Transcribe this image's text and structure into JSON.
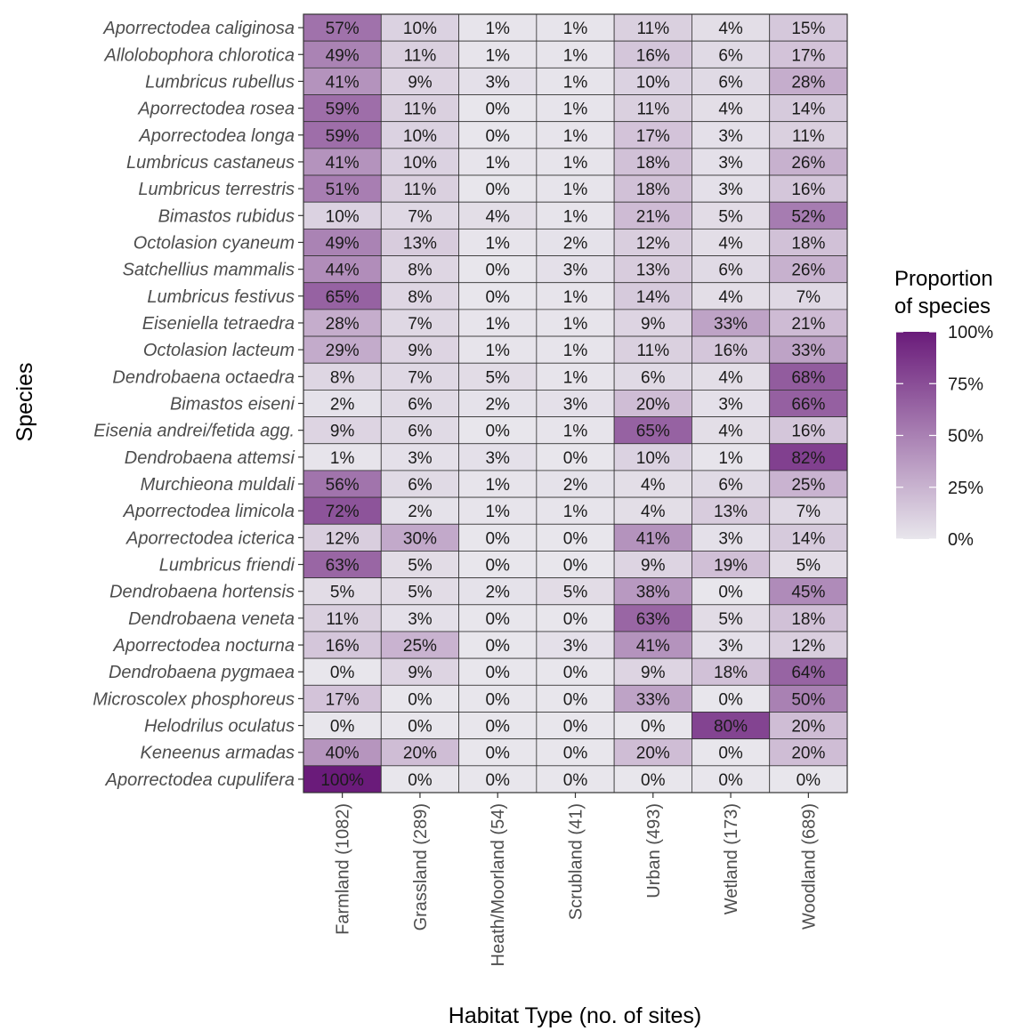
{
  "chart_data": {
    "type": "heatmap",
    "xlabel": "Habitat Type (no. of sites)",
    "ylabel": "Species",
    "columns": [
      "Farmland (1082)",
      "Grassland (289)",
      "Heath/Moorland (54)",
      "Scrubland (41)",
      "Urban (493)",
      "Wetland (173)",
      "Woodland (689)"
    ],
    "rows": [
      "Aporrectodea caliginosa",
      "Allolobophora chlorotica",
      "Lumbricus rubellus",
      "Aporrectodea rosea",
      "Aporrectodea longa",
      "Lumbricus castaneus",
      "Lumbricus terrestris",
      "Bimastos rubidus",
      "Octolasion cyaneum",
      "Satchellius mammalis",
      "Lumbricus festivus",
      "Eiseniella tetraedra",
      "Octolasion lacteum",
      "Dendrobaena octaedra",
      "Bimastos eiseni",
      "Eisenia andrei/fetida agg.",
      "Dendrobaena attemsi",
      "Murchieona muldali",
      "Aporrectodea limicola",
      "Aporrectodea icterica",
      "Lumbricus friendi",
      "Dendrobaena hortensis",
      "Dendrobaena veneta",
      "Aporrectodea nocturna",
      "Dendrobaena pygmaea",
      "Microscolex phosphoreus",
      "Helodrilus oculatus",
      "Keneenus armadas",
      "Aporrectodea cupulifera"
    ],
    "values": [
      [
        57,
        10,
        1,
        1,
        11,
        4,
        15
      ],
      [
        49,
        11,
        1,
        1,
        16,
        6,
        17
      ],
      [
        41,
        9,
        3,
        1,
        10,
        6,
        28
      ],
      [
        59,
        11,
        0,
        1,
        11,
        4,
        14
      ],
      [
        59,
        10,
        0,
        1,
        17,
        3,
        11
      ],
      [
        41,
        10,
        1,
        1,
        18,
        3,
        26
      ],
      [
        51,
        11,
        0,
        1,
        18,
        3,
        16
      ],
      [
        10,
        7,
        4,
        1,
        21,
        5,
        52
      ],
      [
        49,
        13,
        1,
        2,
        12,
        4,
        18
      ],
      [
        44,
        8,
        0,
        3,
        13,
        6,
        26
      ],
      [
        65,
        8,
        0,
        1,
        14,
        4,
        7
      ],
      [
        28,
        7,
        1,
        1,
        9,
        33,
        21
      ],
      [
        29,
        9,
        1,
        1,
        11,
        16,
        33
      ],
      [
        8,
        7,
        5,
        1,
        6,
        4,
        68
      ],
      [
        2,
        6,
        2,
        3,
        20,
        3,
        66
      ],
      [
        9,
        6,
        0,
        1,
        65,
        4,
        16
      ],
      [
        1,
        3,
        3,
        0,
        10,
        1,
        82
      ],
      [
        56,
        6,
        1,
        2,
        4,
        6,
        25
      ],
      [
        72,
        2,
        1,
        1,
        4,
        13,
        7
      ],
      [
        12,
        30,
        0,
        0,
        41,
        3,
        14
      ],
      [
        63,
        5,
        0,
        0,
        9,
        19,
        5
      ],
      [
        5,
        5,
        2,
        5,
        38,
        0,
        45
      ],
      [
        11,
        3,
        0,
        0,
        63,
        5,
        18
      ],
      [
        16,
        25,
        0,
        3,
        41,
        3,
        12
      ],
      [
        0,
        9,
        0,
        0,
        9,
        18,
        64
      ],
      [
        17,
        0,
        0,
        0,
        33,
        0,
        50
      ],
      [
        0,
        0,
        0,
        0,
        0,
        80,
        20
      ],
      [
        40,
        20,
        0,
        0,
        20,
        0,
        20
      ],
      [
        100,
        0,
        0,
        0,
        0,
        0,
        0
      ]
    ],
    "value_suffix": "%",
    "color_scale": {
      "low": "#e8e6ec",
      "high": "#6a1b7a",
      "domain": [
        0,
        100
      ]
    },
    "legend": {
      "title_lines": [
        "Proportion",
        "of species"
      ],
      "ticks": [
        100,
        75,
        50,
        25,
        0
      ],
      "tick_labels": [
        "100%",
        "75%",
        "50%",
        "25%",
        "0%"
      ],
      "placement": "right"
    },
    "grid": false
  }
}
